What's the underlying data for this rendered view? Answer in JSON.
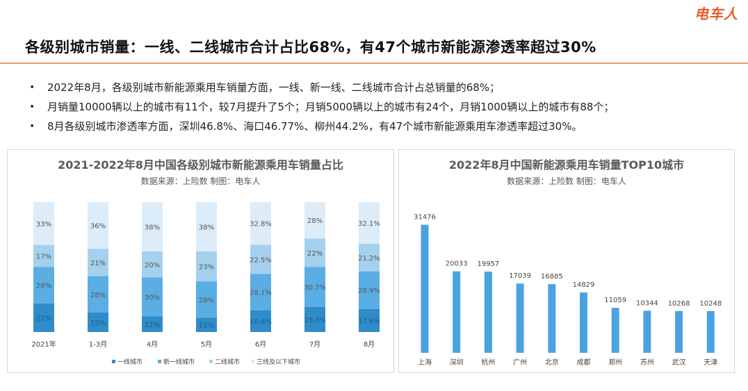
{
  "brand": "电车人",
  "headline": "各级别城市销量：一线、二线城市合计占比68%，有47个城市新能源渗透率超过30%",
  "bullets": [
    "2022年8月，各级别城市新能源乘用车销量方面，一线、新一线、二线城市合计占总销量的68%；",
    "月销量10000辆以上的城市有11个，较7月提升了5个；月销5000辆以上的城市有24个，月销1000辆以上的城市有88个；",
    "8月各级别城市渗透率方面，深圳46.8%、海口46.77%、柳州44.2%，有47个城市新能源乘用车渗透率超过30%。"
  ],
  "colors": {
    "tier1": "#2e8cc8",
    "newtier1": "#5aaee4",
    "tier2": "#a5d0ee",
    "tier3": "#dcecf8",
    "bar": "#4aa3df"
  },
  "chart_data": [
    {
      "type": "bar",
      "stacked": true,
      "percent": true,
      "title": "2021-2022年8月中国各级别城市新能源乘用车销量占比",
      "subtitle": "数据来源：上险数   制图：电车人",
      "categories": [
        "2021年",
        "1-3月",
        "4月",
        "5月",
        "6月",
        "7月",
        "8月"
      ],
      "series": [
        {
          "name": "一线城市",
          "values": [
            22,
            15,
            12,
            11,
            16.6,
            19.3,
            17.8
          ],
          "labels": [
            "22%",
            "15%",
            "12%",
            "11%",
            "16.6%",
            "19.3%",
            "17.8%"
          ]
        },
        {
          "name": "新一线城市",
          "values": [
            28,
            28,
            30,
            28,
            28.1,
            30.7,
            28.9
          ],
          "labels": [
            "28%",
            "28%",
            "30%",
            "28%",
            "28.1%",
            "30.7%",
            "28.9%"
          ]
        },
        {
          "name": "二线城市",
          "values": [
            17,
            21,
            20,
            23,
            22.5,
            22,
            21.2
          ],
          "labels": [
            "17%",
            "21%",
            "20%",
            "23%",
            "22.5%",
            "22%",
            "21.2%"
          ]
        },
        {
          "name": "三线及以下城市",
          "values": [
            33,
            36,
            38,
            38,
            32.8,
            28,
            32.1
          ],
          "labels": [
            "33%",
            "36%",
            "38%",
            "38%",
            "32.8%",
            "28%",
            "32.1%"
          ]
        }
      ],
      "legend_position": "bottom",
      "grid": false
    },
    {
      "type": "bar",
      "title": "2022年8月中国新能源乘用车销量TOP10城市",
      "subtitle": "数据来源：上险数   制图：电车人",
      "categories": [
        "上海",
        "深圳",
        "杭州",
        "广州",
        "北京",
        "成都",
        "郑州",
        "苏州",
        "武汉",
        "天津"
      ],
      "values": [
        31476,
        20033,
        19957,
        17039,
        16885,
        14829,
        11059,
        10344,
        10268,
        10248
      ],
      "ylim": [
        0,
        35000
      ],
      "grid": false
    }
  ]
}
